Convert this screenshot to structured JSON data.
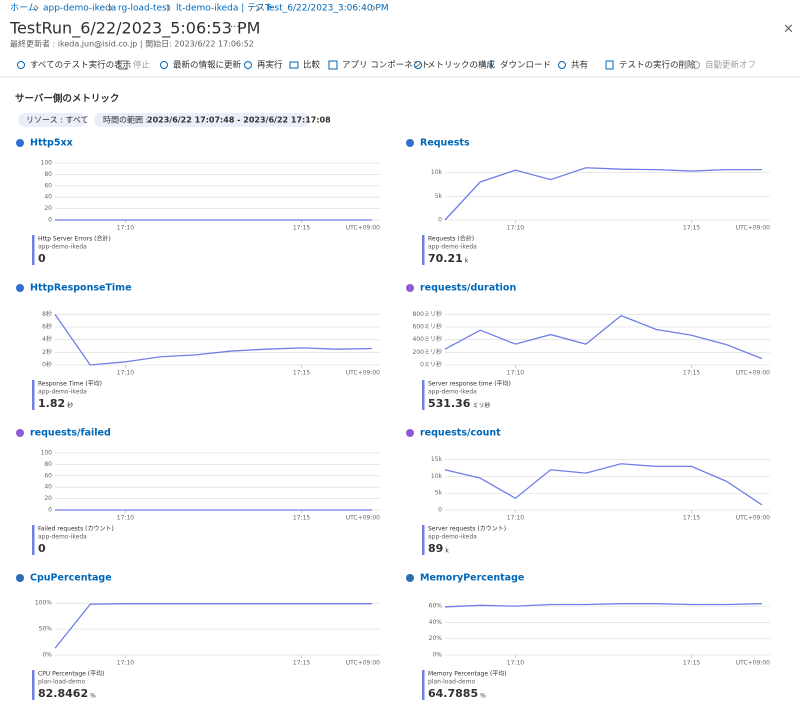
{
  "breadcrumb": [
    "ホーム",
    "app-demo-ikeda",
    "rg-load-test",
    "lt-demo-ikeda | テスト",
    "Test_6/22/2023_3:06:40 PM"
  ],
  "header": {
    "title": "TestRun_6/22/2023_5:06:53 PM",
    "more": "···",
    "subtitle": "最終更新者 : ikeda.jun@isid.co.jp | 開始日: 2023/6/22 17:06:52"
  },
  "toolbar": [
    "すべてのテスト実行の表示",
    "停止",
    "最新の情報に更新",
    "再実行",
    "比較",
    "アプリ コンポーネント",
    "メトリックの構成",
    "ダウンロード",
    "共有",
    "テストの実行の削除",
    "自動更新オフ"
  ],
  "section": {
    "title": "サーバー側のメトリック"
  },
  "filters": {
    "resource": "リソース : すべて",
    "time_label": "時間の範囲 :",
    "time_value": "2023/6/22 17:07:48 - 2023/6/22 17:17:08"
  },
  "chart_data": [
    {
      "type": "line",
      "title": "Http5xx",
      "x": [
        "17:08",
        "17:09",
        "17:10",
        "17:11",
        "17:12",
        "17:13",
        "17:14",
        "17:15",
        "17:16",
        "17:17"
      ],
      "xlim": [
        "17:08",
        "17:17"
      ],
      "xticks": [
        "17:10",
        "17:15"
      ],
      "timezone": "UTC+09:00",
      "ylim": [
        0,
        100
      ],
      "yticks": [
        0,
        20,
        40,
        60,
        80,
        100
      ],
      "grid": true,
      "series": [
        {
          "name": "Http Server Errors (合計)",
          "color": "#6f7fe6",
          "values": [
            0,
            0,
            0,
            0,
            0,
            0,
            0,
            0,
            0,
            0
          ]
        }
      ],
      "resource": "app-demo-ikeda",
      "summary": 0
    },
    {
      "type": "line",
      "title": "Requests",
      "x": [
        "17:08",
        "17:09",
        "17:10",
        "17:11",
        "17:12",
        "17:13",
        "17:14",
        "17:15",
        "17:16",
        "17:17"
      ],
      "xlim": [
        "17:08",
        "17:17"
      ],
      "xticks": [
        "17:10",
        "17:15"
      ],
      "timezone": "UTC+09:00",
      "ylim": [
        0,
        12000
      ],
      "yticks": [
        0,
        {
          "value": 5000,
          "label": "5k"
        },
        {
          "value": 10000,
          "label": "10k"
        }
      ],
      "grid": true,
      "series": [
        {
          "name": "Requests (合計)",
          "color": "#6f7fe6",
          "values": [
            0,
            8000,
            10500,
            8500,
            11000,
            10700,
            10600,
            10300,
            10600,
            10600
          ]
        }
      ],
      "resource": "app-demo-ikeda",
      "summary": 70.21,
      "unit": "k"
    },
    {
      "type": "line",
      "title": "HttpResponseTime",
      "x": [
        "17:08",
        "17:09",
        "17:10",
        "17:11",
        "17:12",
        "17:13",
        "17:14",
        "17:15",
        "17:16",
        "17:17"
      ],
      "xlim": [
        "17:08",
        "17:17"
      ],
      "xticks": [
        "17:10",
        "17:15"
      ],
      "timezone": "UTC+09:00",
      "ylim": [
        0,
        9
      ],
      "yticks": [
        {
          "value": 0,
          "label": "0秒"
        },
        {
          "value": 2,
          "label": "2秒"
        },
        {
          "value": 4,
          "label": "4秒"
        },
        {
          "value": 6,
          "label": "6秒"
        },
        {
          "value": 8,
          "label": "8秒"
        }
      ],
      "grid": true,
      "series": [
        {
          "name": "Response Time (平均)",
          "color": "#6f7fe6",
          "values": [
            8,
            0,
            0.5,
            1.3,
            1.6,
            2.2,
            2.5,
            2.7,
            2.5,
            2.6
          ]
        }
      ],
      "resource": "app-demo-ikeda",
      "summary": 1.82,
      "unit": "秒"
    },
    {
      "type": "line",
      "title": "requests/duration",
      "x": [
        "17:08",
        "17:09",
        "17:10",
        "17:11",
        "17:12",
        "17:13",
        "17:14",
        "17:15",
        "17:16",
        "17:17"
      ],
      "xlim": [
        "17:08",
        "17:17"
      ],
      "xticks": [
        "17:10",
        "17:15"
      ],
      "timezone": "UTC+09:00",
      "ylim": [
        0,
        900
      ],
      "yticks": [
        {
          "value": 0,
          "label": "0ミリ秒"
        },
        {
          "value": 200,
          "label": "200ミリ秒"
        },
        {
          "value": 400,
          "label": "400ミリ秒"
        },
        {
          "value": 600,
          "label": "600ミリ秒"
        },
        {
          "value": 800,
          "label": "800ミリ秒"
        }
      ],
      "grid": true,
      "series": [
        {
          "name": "Server response time (平均)",
          "color": "#6f7fe6",
          "values": [
            250,
            550,
            330,
            480,
            330,
            780,
            560,
            470,
            320,
            100
          ]
        }
      ],
      "resource": "app-demo-ikeda",
      "summary": 531.36,
      "unit": "ミリ秒"
    },
    {
      "type": "line",
      "title": "requests/failed",
      "x": [
        "17:08",
        "17:09",
        "17:10",
        "17:11",
        "17:12",
        "17:13",
        "17:14",
        "17:15",
        "17:16",
        "17:17"
      ],
      "xlim": [
        "17:08",
        "17:17"
      ],
      "xticks": [
        "17:10",
        "17:15"
      ],
      "timezone": "UTC+09:00",
      "ylim": [
        0,
        100
      ],
      "yticks": [
        0,
        20,
        40,
        60,
        80,
        100
      ],
      "grid": true,
      "series": [
        {
          "name": "Failed requests (カウント)",
          "color": "#6f7fe6",
          "values": [
            0,
            0,
            0,
            0,
            0,
            0,
            0,
            0,
            0,
            0
          ]
        }
      ],
      "resource": "app-demo-ikeda",
      "summary": 0
    },
    {
      "type": "line",
      "title": "requests/count",
      "x": [
        "17:08",
        "17:09",
        "17:10",
        "17:11",
        "17:12",
        "17:13",
        "17:14",
        "17:15",
        "17:16",
        "17:17"
      ],
      "xlim": [
        "17:08",
        "17:17"
      ],
      "xticks": [
        "17:10",
        "17:15"
      ],
      "timezone": "UTC+09:00",
      "ylim": [
        0,
        17000
      ],
      "yticks": [
        0,
        {
          "value": 5000,
          "label": "5k"
        },
        {
          "value": 10000,
          "label": "10k"
        },
        {
          "value": 15000,
          "label": "15k"
        }
      ],
      "grid": true,
      "series": [
        {
          "name": "Server requests (カウント)",
          "color": "#6f7fe6",
          "values": [
            12000,
            9500,
            3500,
            12000,
            11000,
            13800,
            13000,
            13000,
            8500,
            1500
          ]
        }
      ],
      "resource": "app-demo-ikeda",
      "summary": 89,
      "unit": "k"
    },
    {
      "type": "line",
      "title": "CpuPercentage",
      "x": [
        "17:08",
        "17:09",
        "17:10",
        "17:11",
        "17:12",
        "17:13",
        "17:14",
        "17:15",
        "17:16",
        "17:17"
      ],
      "xlim": [
        "17:08",
        "17:17"
      ],
      "xticks": [
        "17:10",
        "17:15"
      ],
      "timezone": "UTC+09:00",
      "ylim": [
        0,
        110
      ],
      "yticks": [
        {
          "value": 0,
          "label": "0%"
        },
        {
          "value": 50,
          "label": "50%"
        },
        {
          "value": 100,
          "label": "100%"
        }
      ],
      "grid": true,
      "series": [
        {
          "name": "CPU Percentage (平均)",
          "color": "#6f7fe6",
          "values": [
            13,
            98,
            99,
            99,
            99,
            99,
            99,
            99,
            99,
            99
          ]
        }
      ],
      "resource": "plan-load-demo",
      "summary": 82.8462,
      "unit": "%"
    },
    {
      "type": "line",
      "title": "MemoryPercentage",
      "x": [
        "17:08",
        "17:09",
        "17:10",
        "17:11",
        "17:12",
        "17:13",
        "17:14",
        "17:15",
        "17:16",
        "17:17"
      ],
      "xlim": [
        "17:08",
        "17:17"
      ],
      "xticks": [
        "17:10",
        "17:15"
      ],
      "timezone": "UTC+09:00",
      "ylim": [
        0,
        70
      ],
      "yticks": [
        {
          "value": 0,
          "label": "0%"
        },
        {
          "value": 20,
          "label": "20%"
        },
        {
          "value": 40,
          "label": "40%"
        },
        {
          "value": 60,
          "label": "60%"
        }
      ],
      "grid": true,
      "series": [
        {
          "name": "Memory Percentage (平均)",
          "color": "#6f7fe6",
          "values": [
            59,
            61,
            60,
            62,
            62,
            63,
            63,
            62,
            62,
            63
          ]
        }
      ],
      "resource": "plan-load-demo",
      "summary": 64.7885,
      "unit": "%"
    }
  ]
}
